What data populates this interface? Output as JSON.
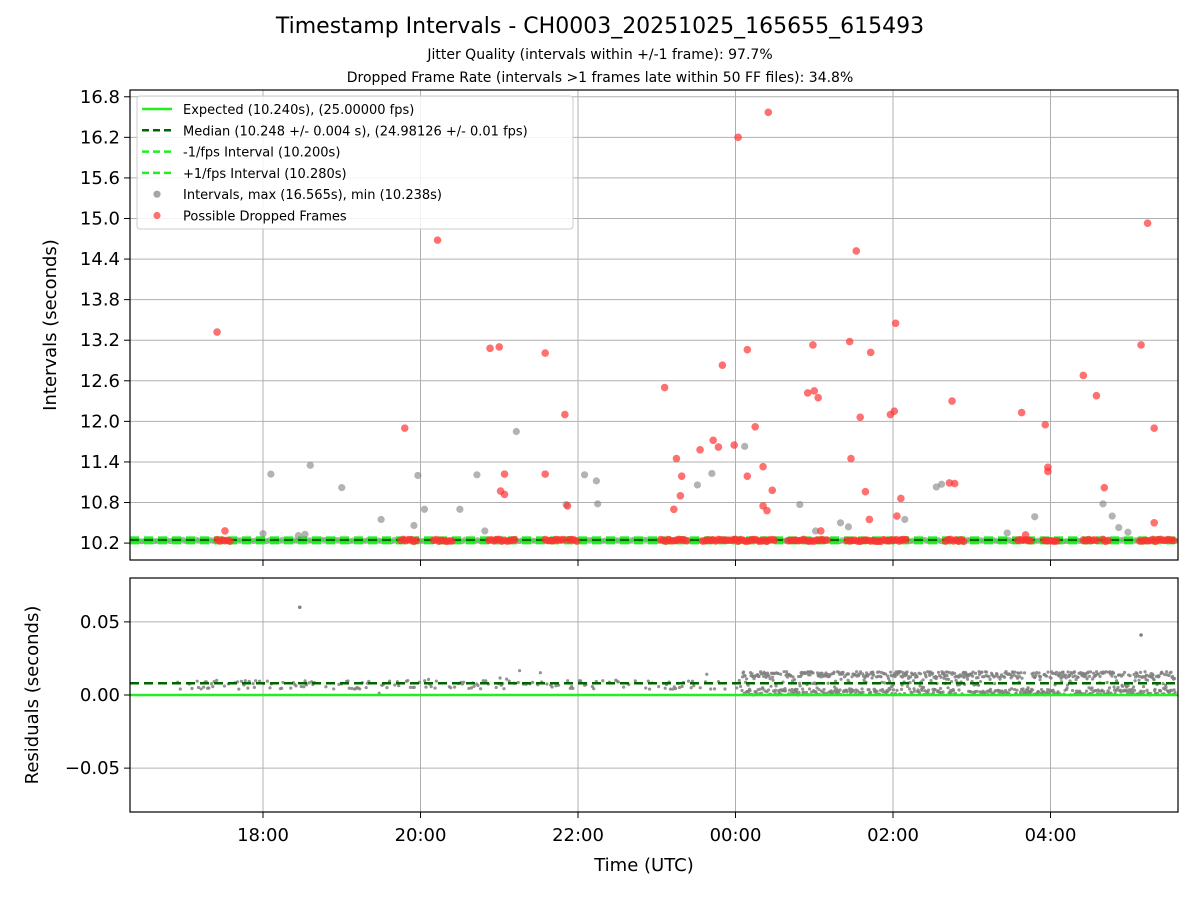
{
  "chart_data": [
    {
      "type": "scatter",
      "title": "Timestamp Intervals - CH0003_20251025_165655_615493",
      "subtitle_lines": [
        "Jitter Quality (intervals within +/-1 frame): 97.7%",
        "Dropped Frame Rate (intervals >1 frames late within 50 FF files): 34.8%"
      ],
      "ylabel": "Intervals (seconds)",
      "xlabel": "",
      "ylim": [
        9.95,
        16.9
      ],
      "yticks": [
        10.2,
        10.8,
        11.4,
        12.0,
        12.6,
        13.2,
        13.8,
        14.4,
        15.0,
        15.6,
        16.2,
        16.8
      ],
      "ytick_labels": [
        "10.2",
        "10.8",
        "11.4",
        "12.0",
        "12.6",
        "13.2",
        "13.8",
        "14.4",
        "15.0",
        "15.6",
        "16.2",
        "16.8"
      ],
      "grid": true,
      "legend_position": "top-left",
      "reference_lines": [
        {
          "name": "Expected (10.240s), (25.00000 fps)",
          "y": 10.24,
          "color": "#22ee22",
          "style": "solid"
        },
        {
          "name": "Median (10.248 +/- 0.004 s), (24.98126 +/- 0.01 fps)",
          "y": 10.248,
          "color": "#006400",
          "style": "dashed"
        },
        {
          "name": "-1/fps Interval (10.200s)",
          "y": 10.2,
          "color": "#22ee22",
          "style": "dashed"
        },
        {
          "name": "+1/fps Interval (10.280s)",
          "y": 10.28,
          "color": "#22ee22",
          "style": "dashed"
        }
      ],
      "series": [
        {
          "name": "Intervals, max (16.565s), min (10.238s)",
          "color": "#808080",
          "points": [
            [
              "18:06",
              11.22
            ],
            [
              "18:36",
              11.35
            ],
            [
              "19:00",
              11.02
            ],
            [
              "19:30",
              10.55
            ],
            [
              "19:58",
              11.2
            ],
            [
              "20:03",
              10.7
            ],
            [
              "20:30",
              10.7
            ],
            [
              "20:43",
              11.21
            ],
            [
              "20:49",
              10.38
            ],
            [
              "21:13",
              11.85
            ],
            [
              "21:51",
              10.77
            ],
            [
              "22:05",
              11.21
            ],
            [
              "22:14",
              11.12
            ],
            [
              "22:15",
              10.78
            ],
            [
              "23:31",
              11.06
            ],
            [
              "23:42",
              11.23
            ],
            [
              "00:07",
              11.63
            ],
            [
              "00:49",
              10.77
            ],
            [
              "01:20",
              10.5
            ],
            [
              "01:26",
              10.44
            ],
            [
              "02:09",
              10.55
            ],
            [
              "02:33",
              11.03
            ],
            [
              "02:37",
              11.07
            ],
            [
              "03:27",
              10.35
            ],
            [
              "03:48",
              10.59
            ],
            [
              "04:40",
              10.78
            ],
            [
              "04:47",
              10.6
            ],
            [
              "04:52",
              10.43
            ],
            [
              "04:59",
              10.36
            ],
            [
              "18:00",
              10.34
            ],
            [
              "18:27",
              10.31
            ],
            [
              "18:32",
              10.33
            ],
            [
              "19:55",
              10.46
            ],
            [
              "01:01",
              10.38
            ]
          ]
        },
        {
          "name": "Possible Dropped Frames",
          "color": "#ff3333",
          "points": [
            [
              "17:25",
              13.32
            ],
            [
              "17:31",
              10.38
            ],
            [
              "19:48",
              11.9
            ],
            [
              "20:13",
              14.68
            ],
            [
              "20:53",
              13.08
            ],
            [
              "21:00",
              13.1
            ],
            [
              "21:01",
              10.97
            ],
            [
              "21:04",
              11.22
            ],
            [
              "21:04",
              10.92
            ],
            [
              "21:35",
              13.01
            ],
            [
              "21:35",
              11.22
            ],
            [
              "21:50",
              12.1
            ],
            [
              "21:52",
              10.75
            ],
            [
              "23:06",
              12.5
            ],
            [
              "23:13",
              10.7
            ],
            [
              "23:15",
              11.45
            ],
            [
              "23:19",
              11.19
            ],
            [
              "23:18",
              10.9
            ],
            [
              "23:33",
              11.58
            ],
            [
              "23:43",
              11.72
            ],
            [
              "23:47",
              11.62
            ],
            [
              "23:50",
              12.83
            ],
            [
              "23:59",
              11.65
            ],
            [
              "00:02",
              16.2
            ],
            [
              "00:09",
              13.06
            ],
            [
              "00:09",
              11.19
            ],
            [
              "00:15",
              11.92
            ],
            [
              "00:21",
              11.33
            ],
            [
              "00:21",
              10.75
            ],
            [
              "00:24",
              10.68
            ],
            [
              "00:25",
              16.57
            ],
            [
              "00:28",
              10.98
            ],
            [
              "00:55",
              12.42
            ],
            [
              "00:59",
              13.13
            ],
            [
              "01:00",
              12.45
            ],
            [
              "01:03",
              12.35
            ],
            [
              "01:05",
              10.38
            ],
            [
              "01:27",
              13.18
            ],
            [
              "01:28",
              11.45
            ],
            [
              "01:32",
              14.52
            ],
            [
              "01:35",
              12.06
            ],
            [
              "01:39",
              10.96
            ],
            [
              "01:42",
              10.55
            ],
            [
              "01:43",
              13.02
            ],
            [
              "01:58",
              12.1
            ],
            [
              "02:01",
              12.15
            ],
            [
              "02:02",
              13.45
            ],
            [
              "02:03",
              10.6
            ],
            [
              "02:06",
              10.86
            ],
            [
              "02:43",
              11.09
            ],
            [
              "02:45",
              12.3
            ],
            [
              "02:47",
              11.08
            ],
            [
              "03:38",
              12.13
            ],
            [
              "03:41",
              10.32
            ],
            [
              "03:56",
              11.95
            ],
            [
              "03:58",
              11.32
            ],
            [
              "03:58",
              11.26
            ],
            [
              "04:25",
              12.68
            ],
            [
              "04:35",
              12.38
            ],
            [
              "04:41",
              11.02
            ],
            [
              "05:09",
              13.13
            ],
            [
              "05:14",
              14.93
            ],
            [
              "05:19",
              11.9
            ],
            [
              "05:19",
              10.5
            ]
          ],
          "baseline_clusters": [
            [
              "17:25",
              "17:35"
            ],
            [
              "19:45",
              "19:58"
            ],
            [
              "20:10",
              "20:25"
            ],
            [
              "20:52",
              "21:12"
            ],
            [
              "21:35",
              "21:50"
            ],
            [
              "21:53",
              "22:00"
            ],
            [
              "23:03",
              "23:24"
            ],
            [
              "23:35",
              "23:53"
            ],
            [
              "23:55",
              "00:00"
            ],
            [
              "00:00",
              "00:30"
            ],
            [
              "00:40",
              "01:10"
            ],
            [
              "01:25",
              "02:05"
            ],
            [
              "02:06",
              "02:10"
            ],
            [
              "02:40",
              "02:55"
            ],
            [
              "03:35",
              "03:45"
            ],
            [
              "03:55",
              "04:05"
            ],
            [
              "04:25",
              "04:35"
            ],
            [
              "04:40",
              "04:45"
            ],
            [
              "05:08",
              "05:35"
            ]
          ]
        }
      ]
    },
    {
      "type": "scatter",
      "title": "",
      "xlabel": "Time (UTC)",
      "ylabel": "Residuals (seconds)",
      "ylim": [
        -0.08,
        0.08
      ],
      "yticks": [
        -0.05,
        0.0,
        0.05
      ],
      "ytick_labels": [
        "−0.05",
        "0.00",
        "0.05"
      ],
      "xlim": [
        "16:25",
        "05:35"
      ],
      "xtick_labels": [
        "18:00",
        "20:00",
        "22:00",
        "00:00",
        "02:00",
        "04:00"
      ],
      "grid": true,
      "reference_lines": [
        {
          "y": 0.0,
          "color": "#22ee22",
          "style": "solid"
        },
        {
          "y": 0.008,
          "color": "#006400",
          "style": "dashed"
        }
      ],
      "series": [
        {
          "color": "#808080",
          "outliers": [
            [
              "18:28",
              0.06
            ],
            [
              "05:09",
              0.041
            ]
          ],
          "phases": [
            {
              "from": "16:55",
              "to": "00:05",
              "range": [
                0.0,
                0.017
              ]
            },
            {
              "from": "00:05",
              "to": "05:35",
              "range": [
                0.0,
                0.016
              ]
            }
          ]
        }
      ]
    }
  ],
  "legend": {
    "entries": [
      {
        "label": "Expected (10.240s), (25.00000 fps)",
        "kind": "line",
        "color": "#22ee22"
      },
      {
        "label": "Median (10.248 +/- 0.004 s), (24.98126 +/- 0.01 fps)",
        "kind": "dashed",
        "color": "#006400"
      },
      {
        "label": "-1/fps Interval (10.200s)",
        "kind": "dashed",
        "color": "#22ee22"
      },
      {
        "label": "+1/fps Interval (10.280s)",
        "kind": "dashed",
        "color": "#22ee22"
      },
      {
        "label": "Intervals, max (16.565s), min (10.238s)",
        "kind": "marker",
        "color": "#808080"
      },
      {
        "label": "Possible Dropped Frames",
        "kind": "marker",
        "color": "#ff3333"
      }
    ]
  }
}
